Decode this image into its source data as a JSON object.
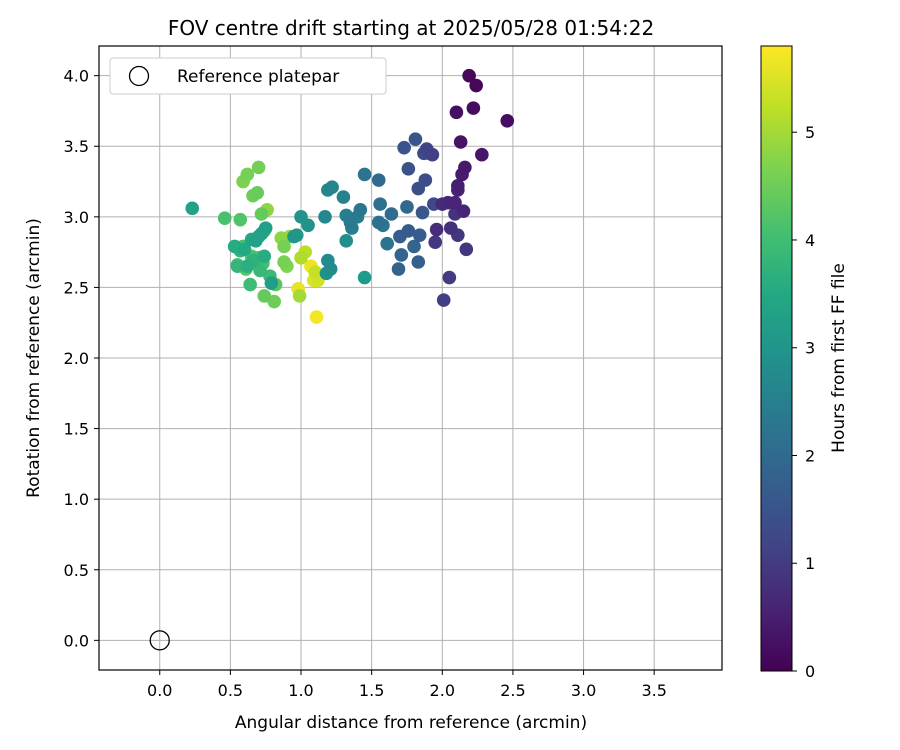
{
  "chart_data": {
    "type": "scatter",
    "title": "FOV centre drift starting at 2025/05/28 01:54:22",
    "xlabel": "Angular distance from reference (arcmin)",
    "ylabel": "Rotation from reference (arcmin)",
    "xlim": [
      -0.43,
      3.98
    ],
    "ylim": [
      -0.21,
      4.21
    ],
    "xticks": [
      0.0,
      0.5,
      1.0,
      1.5,
      2.0,
      2.5,
      3.0,
      3.5
    ],
    "yticks": [
      0.0,
      0.5,
      1.0,
      1.5,
      2.0,
      2.5,
      3.0,
      3.5,
      4.0
    ],
    "xtick_labels": [
      "0.0",
      "0.5",
      "1.0",
      "1.5",
      "2.0",
      "2.5",
      "3.0",
      "3.5"
    ],
    "ytick_labels": [
      "0.0",
      "0.5",
      "1.0",
      "1.5",
      "2.0",
      "2.5",
      "3.0",
      "3.5",
      "4.0"
    ],
    "grid": true,
    "legend": {
      "placement": "top-left",
      "label": "Reference platepar"
    },
    "reference_point": {
      "x": 0.0,
      "y": 0.0
    },
    "colorbar": {
      "label": "Hours from first FF file",
      "colormap": "viridis",
      "range": [
        0,
        5.8
      ],
      "ticks": [
        0,
        1,
        2,
        3,
        4,
        5
      ],
      "tick_labels": [
        "0",
        "1",
        "2",
        "3",
        "4",
        "5"
      ]
    },
    "series": [
      {
        "x": [
          2.19,
          2.24,
          2.22,
          2.46,
          2.1,
          2.13,
          2.28,
          2.16,
          2.14,
          2.11,
          2.11,
          2.09,
          2.15,
          2.04,
          2.0,
          1.96,
          2.06,
          2.09,
          2.11,
          2.17,
          1.95,
          2.05,
          2.01,
          1.93,
          1.89,
          1.91,
          1.94,
          1.87,
          1.88,
          1.83,
          1.73,
          1.76,
          1.81,
          1.86,
          1.76,
          1.7,
          1.84,
          1.83,
          1.69,
          1.71,
          1.8,
          1.75,
          1.55,
          1.64,
          1.56,
          1.55,
          1.45,
          1.61,
          1.58,
          1.42,
          1.35,
          1.4,
          1.36,
          1.32,
          1.3,
          1.22,
          1.19,
          1.17,
          1.19,
          1.21,
          1.32,
          1.18,
          1.05,
          1.0,
          0.97,
          0.95,
          1.45,
          0.79,
          0.75,
          0.72,
          0.68,
          0.7,
          0.65,
          0.6,
          0.53,
          0.74,
          0.62,
          0.66,
          0.57,
          0.55,
          0.71,
          0.78,
          0.64,
          0.7,
          0.73,
          0.59,
          0.65,
          0.55,
          0.61,
          0.82,
          0.74,
          0.81,
          0.88,
          0.9,
          0.86,
          0.92,
          0.99,
          1.0,
          1.03,
          1.1,
          1.12,
          1.09,
          0.98,
          1.07,
          1.11,
          0.7,
          0.62,
          0.59,
          0.66,
          0.69,
          0.76,
          0.72,
          0.23,
          0.46,
          0.57,
          0.88,
          0.74
        ],
        "y": [
          4.0,
          3.93,
          3.77,
          3.68,
          3.74,
          3.53,
          3.44,
          3.35,
          3.3,
          3.22,
          3.19,
          3.1,
          3.04,
          3.1,
          3.09,
          2.91,
          2.92,
          3.02,
          2.87,
          2.77,
          2.82,
          2.57,
          2.41,
          3.44,
          3.48,
          3.45,
          3.09,
          3.45,
          3.26,
          3.2,
          3.49,
          3.34,
          3.55,
          3.03,
          2.9,
          2.86,
          2.87,
          2.68,
          2.63,
          2.73,
          2.79,
          3.07,
          3.26,
          3.02,
          3.09,
          2.96,
          3.3,
          2.81,
          2.94,
          3.05,
          2.96,
          3.0,
          2.92,
          3.01,
          3.14,
          3.21,
          3.19,
          3.0,
          2.69,
          2.63,
          2.83,
          2.6,
          2.94,
          3.0,
          2.87,
          2.86,
          2.57,
          2.53,
          2.92,
          2.88,
          2.83,
          2.86,
          2.84,
          2.77,
          2.79,
          2.72,
          2.65,
          2.69,
          2.76,
          2.65,
          2.62,
          2.58,
          2.52,
          2.71,
          2.67,
          2.79,
          2.72,
          2.66,
          2.63,
          2.52,
          2.44,
          2.4,
          2.68,
          2.65,
          2.85,
          2.86,
          2.44,
          2.71,
          2.75,
          2.61,
          2.55,
          2.55,
          2.49,
          2.65,
          2.29,
          3.35,
          3.3,
          3.25,
          3.15,
          3.17,
          3.05,
          3.02,
          3.06,
          2.99,
          2.98,
          2.79,
          2.9
        ],
        "hours": [
          0.1,
          0.1,
          0.2,
          0.2,
          0.25,
          0.3,
          0.35,
          0.4,
          0.45,
          0.5,
          0.55,
          0.6,
          0.6,
          0.65,
          0.7,
          0.75,
          0.8,
          0.85,
          0.9,
          0.9,
          0.95,
          1.0,
          1.05,
          1.1,
          1.15,
          1.2,
          1.25,
          1.3,
          1.35,
          1.4,
          1.45,
          1.5,
          1.55,
          1.6,
          1.65,
          1.7,
          1.7,
          1.75,
          1.8,
          1.85,
          1.9,
          1.95,
          2.0,
          2.05,
          2.1,
          2.15,
          2.2,
          2.2,
          2.25,
          2.3,
          2.35,
          2.4,
          2.45,
          2.5,
          2.55,
          2.6,
          2.65,
          2.7,
          2.75,
          2.8,
          2.85,
          2.9,
          2.95,
          3.0,
          3.05,
          3.1,
          3.15,
          3.2,
          3.25,
          3.3,
          3.35,
          3.4,
          3.45,
          3.5,
          3.55,
          3.6,
          3.65,
          3.7,
          3.75,
          3.8,
          3.85,
          3.9,
          3.95,
          4.0,
          4.05,
          4.1,
          4.15,
          4.2,
          4.25,
          4.3,
          4.4,
          4.5,
          4.6,
          4.7,
          4.8,
          4.9,
          5.0,
          5.1,
          5.2,
          5.3,
          5.4,
          5.5,
          5.6,
          5.65,
          5.7,
          4.55,
          4.6,
          4.65,
          4.5,
          4.45,
          4.8,
          4.4,
          3.3,
          4.1,
          4.2,
          4.6,
          4.35
        ]
      }
    ]
  }
}
